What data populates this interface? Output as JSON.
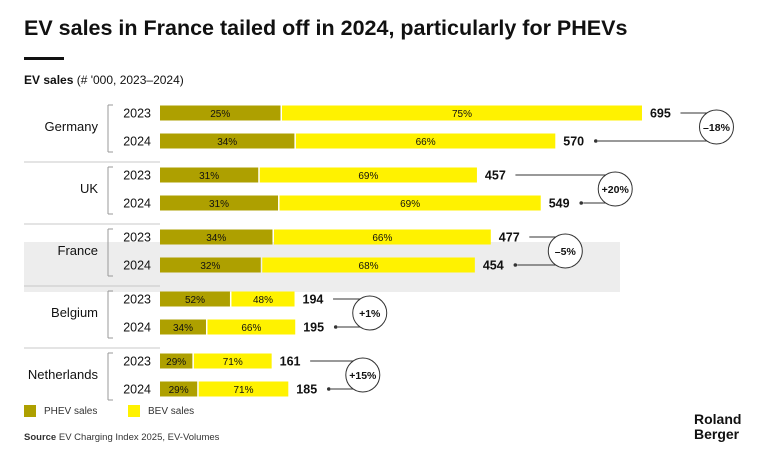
{
  "title": "EV sales in France tailed off in 2024, particularly for PHEVs",
  "subtitle_bold": "EV sales",
  "subtitle_rest": " (# '000, 2023–2024)",
  "legend": {
    "phev": "PHEV sales",
    "bev": "BEV sales"
  },
  "source_bold": "Source",
  "source_text": " EV Charging Index 2025, EV-Volumes",
  "brand": {
    "line1": "Roland",
    "line2": "Berger"
  },
  "colors": {
    "phev": "#AEA000",
    "bev": "#FFF200",
    "highlight": "#EDEDED",
    "text": "#111111"
  },
  "chart_data": {
    "type": "bar",
    "orientation": "horizontal",
    "stacked": true,
    "units": "'000 units",
    "highlighted_country": "France",
    "series_names": [
      "PHEV sales",
      "BEV sales"
    ],
    "countries": [
      {
        "name": "Germany",
        "change": "–18%",
        "years": [
          {
            "year": "2023",
            "total": 695,
            "phev_pct": 25,
            "bev_pct": 75
          },
          {
            "year": "2024",
            "total": 570,
            "phev_pct": 34,
            "bev_pct": 66
          }
        ]
      },
      {
        "name": "UK",
        "change": "+20%",
        "years": [
          {
            "year": "2023",
            "total": 457,
            "phev_pct": 31,
            "bev_pct": 69
          },
          {
            "year": "2024",
            "total": 549,
            "phev_pct": 31,
            "bev_pct": 69
          }
        ]
      },
      {
        "name": "France",
        "change": "–5%",
        "years": [
          {
            "year": "2023",
            "total": 477,
            "phev_pct": 34,
            "bev_pct": 66
          },
          {
            "year": "2024",
            "total": 454,
            "phev_pct": 32,
            "bev_pct": 68
          }
        ]
      },
      {
        "name": "Belgium",
        "change": "+1%",
        "years": [
          {
            "year": "2023",
            "total": 194,
            "phev_pct": 52,
            "bev_pct": 48
          },
          {
            "year": "2024",
            "total": 195,
            "phev_pct": 34,
            "bev_pct": 66
          }
        ]
      },
      {
        "name": "Netherlands",
        "change": "+15%",
        "years": [
          {
            "year": "2023",
            "total": 161,
            "phev_pct": 29,
            "bev_pct": 71
          },
          {
            "year": "2024",
            "total": 185,
            "phev_pct": 29,
            "bev_pct": 71
          }
        ]
      }
    ]
  }
}
